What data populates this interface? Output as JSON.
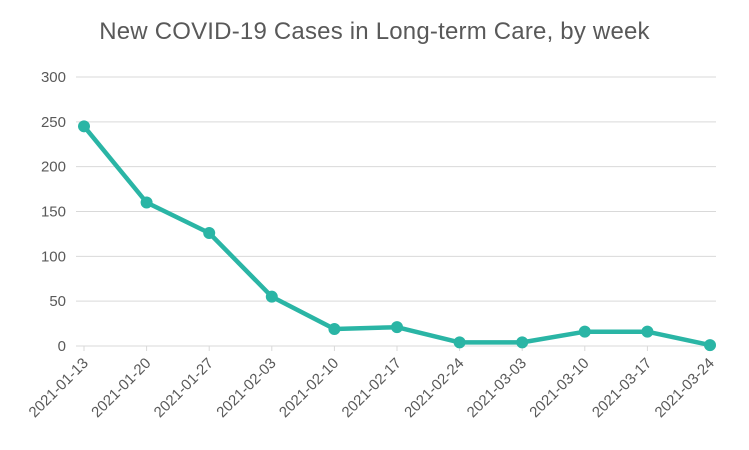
{
  "chart_data": {
    "type": "line",
    "title": "New COVID-19 Cases in Long-term Care, by week",
    "xlabel": "",
    "ylabel": "",
    "categories": [
      "2021-01-13",
      "2021-01-20",
      "2021-01-27",
      "2021-02-03",
      "2021-02-10",
      "2021-02-17",
      "2021-02-24",
      "2021-03-03",
      "2021-03-10",
      "2021-03-17",
      "2021-03-24"
    ],
    "series": [
      {
        "values": [
          245,
          160,
          126,
          55,
          19,
          21,
          4,
          4,
          16,
          16,
          1
        ]
      }
    ],
    "ylim": [
      0,
      300
    ],
    "yticks": [
      0,
      50,
      100,
      150,
      200,
      250,
      300
    ],
    "grid": true,
    "legend": "none",
    "line_color": "#2AB5A5",
    "grid_color": "#D9D9D9",
    "text_color": "#595959"
  }
}
